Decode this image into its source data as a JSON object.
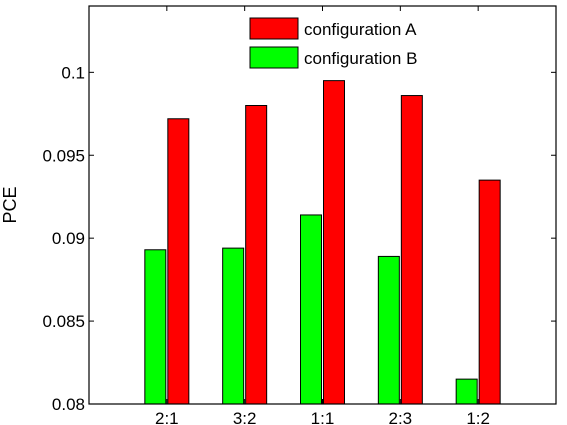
{
  "chart_data": {
    "type": "bar",
    "categories": [
      "2:1",
      "3:2",
      "1:1",
      "2:3",
      "1:2"
    ],
    "series": [
      {
        "name": "configuration B",
        "color": "#00ff00",
        "values": [
          0.0893,
          0.0894,
          0.0914,
          0.0889,
          0.0815
        ]
      },
      {
        "name": "configuration A",
        "color": "#ff0000",
        "values": [
          0.0972,
          0.098,
          0.0995,
          0.0986,
          0.0935
        ]
      }
    ],
    "title": "",
    "xlabel": "",
    "ylabel": "PCE",
    "ylim": [
      0.08,
      0.104
    ],
    "yticks": [
      0.08,
      0.085,
      0.09,
      0.095,
      0.1
    ],
    "ytick_labels": [
      "0.08",
      "0.085",
      "0.09",
      "0.095",
      "0.1"
    ],
    "grid": false,
    "legend": {
      "position": "top-right",
      "order": [
        "configuration A",
        "configuration B"
      ]
    }
  }
}
